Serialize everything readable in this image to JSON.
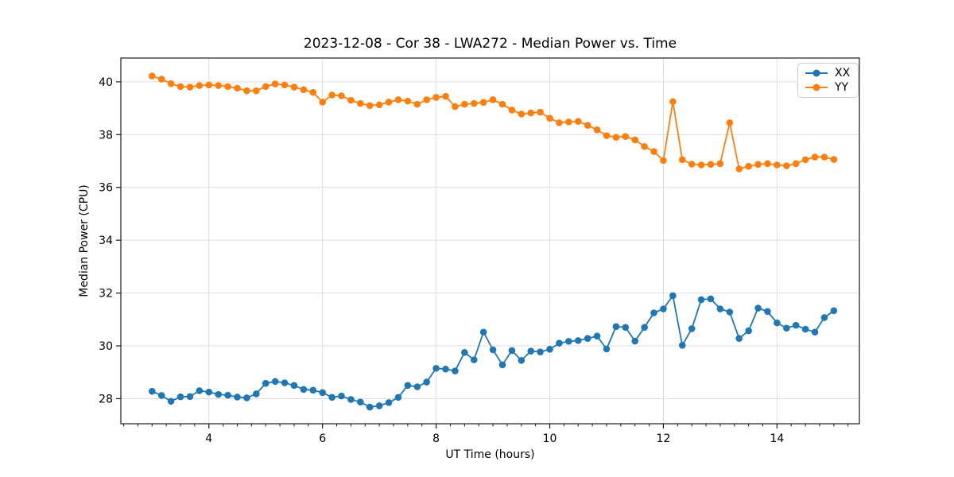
{
  "chart_data": {
    "type": "line",
    "title": "2023-12-08 - Cor 38 - LWA272 - Median Power vs. Time",
    "xlabel": "UT Time (hours)",
    "ylabel": "Median Power (CPU)",
    "xlim": [
      2.45,
      15.45
    ],
    "ylim": [
      27.05,
      40.9
    ],
    "xticks": [
      4,
      6,
      8,
      10,
      12,
      14
    ],
    "yticks": [
      28,
      30,
      32,
      34,
      36,
      38,
      40
    ],
    "x_minor_step": 0.25,
    "grid": true,
    "legend_position": "upper right",
    "marker": "o",
    "x": [
      3,
      3.167,
      3.333,
      3.5,
      3.667,
      3.833,
      4,
      4.167,
      4.333,
      4.5,
      4.667,
      4.833,
      5,
      5.167,
      5.333,
      5.5,
      5.667,
      5.833,
      6,
      6.167,
      6.333,
      6.5,
      6.667,
      6.833,
      7,
      7.167,
      7.333,
      7.5,
      7.667,
      7.833,
      8,
      8.167,
      8.333,
      8.5,
      8.667,
      8.833,
      9,
      9.167,
      9.333,
      9.5,
      9.667,
      9.833,
      10,
      10.167,
      10.333,
      10.5,
      10.667,
      10.833,
      11,
      11.167,
      11.333,
      11.5,
      11.667,
      11.833,
      12,
      12.167,
      12.333,
      12.5,
      12.667,
      12.833,
      13,
      13.167,
      13.333,
      13.5,
      13.667,
      13.833,
      14,
      14.167,
      14.333,
      14.5,
      14.667,
      14.833,
      15
    ],
    "series": [
      {
        "name": "XX",
        "color": "#1f77b4",
        "values": [
          28.28,
          28.12,
          27.9,
          28.07,
          28.08,
          28.3,
          28.25,
          28.16,
          28.13,
          28.06,
          28.03,
          28.18,
          28.58,
          28.65,
          28.6,
          28.5,
          28.35,
          28.32,
          28.23,
          28.05,
          28.1,
          27.97,
          27.87,
          27.68,
          27.73,
          27.85,
          28.05,
          28.5,
          28.45,
          28.63,
          29.15,
          29.12,
          29.05,
          29.75,
          29.47,
          30.52,
          29.85,
          29.28,
          29.82,
          29.45,
          29.8,
          29.77,
          29.87,
          30.1,
          30.17,
          30.2,
          30.28,
          30.37,
          29.88,
          30.73,
          30.7,
          30.18,
          30.7,
          31.25,
          31.4,
          31.9,
          30.02,
          30.65,
          31.75,
          31.78,
          31.4,
          31.28,
          30.28,
          30.57,
          31.43,
          31.3,
          30.87,
          30.67,
          30.78,
          30.63,
          30.52,
          31.07,
          31.33
        ]
      },
      {
        "name": "YY",
        "color": "#ff7f0e",
        "values": [
          40.22,
          40.1,
          39.93,
          39.82,
          39.8,
          39.86,
          39.88,
          39.86,
          39.82,
          39.76,
          39.66,
          39.66,
          39.82,
          39.92,
          39.88,
          39.8,
          39.7,
          39.6,
          39.23,
          39.5,
          39.47,
          39.3,
          39.18,
          39.1,
          39.13,
          39.23,
          39.32,
          39.27,
          39.15,
          39.32,
          39.41,
          39.45,
          39.06,
          39.15,
          39.18,
          39.22,
          39.32,
          39.15,
          38.93,
          38.78,
          38.82,
          38.85,
          38.62,
          38.45,
          38.48,
          38.5,
          38.35,
          38.18,
          37.96,
          37.9,
          37.93,
          37.8,
          37.55,
          37.36,
          37.02,
          39.25,
          37.05,
          36.88,
          36.85,
          36.87,
          36.9,
          38.45,
          36.7,
          36.8,
          36.87,
          36.9,
          36.85,
          36.82,
          36.9,
          37.05,
          37.15,
          37.15,
          37.06
        ]
      }
    ]
  },
  "style": {
    "grid_color": "#dedede",
    "spine_color": "#1a1a1a",
    "tick_color": "#1a1a1a",
    "background": "#ffffff"
  }
}
